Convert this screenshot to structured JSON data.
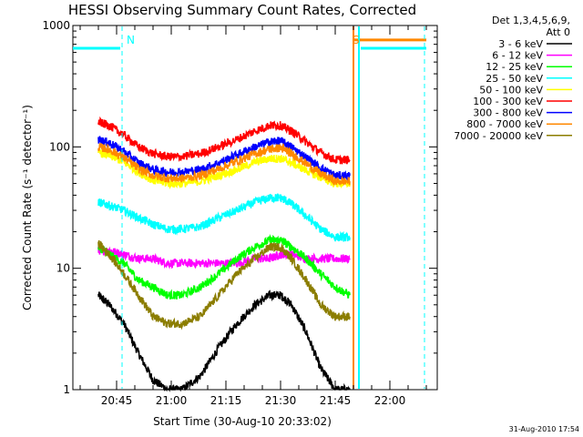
{
  "chart_data": {
    "type": "line",
    "title": "HESSI Observing Summary Count Rates, Corrected",
    "xlabel": "Start Time (30-Aug-10 20:33:02)",
    "ylabel": "Corrected Count Rate (s⁻¹ detector⁻¹)",
    "y_scale": "log",
    "ylim": [
      1,
      1000
    ],
    "x_units": "minutes after 20:33:02",
    "xlim": [
      0,
      100
    ],
    "x_ticks": [
      {
        "label": "20:45",
        "value": 12
      },
      {
        "label": "21:00",
        "value": 27
      },
      {
        "label": "21:15",
        "value": 42
      },
      {
        "label": "21:30",
        "value": 57
      },
      {
        "label": "21:45",
        "value": 72
      },
      {
        "label": "22:00",
        "value": 87
      }
    ],
    "y_ticks": [
      {
        "label": "1",
        "value": 1
      },
      {
        "label": "10",
        "value": 10
      },
      {
        "label": "100",
        "value": 100
      },
      {
        "label": "1000",
        "value": 1000
      }
    ],
    "legend_header": [
      "Det 1,3,4,5,6,9,",
      "Att 0"
    ],
    "legend_placement": "right",
    "series": [
      {
        "name": "3 - 6 keV",
        "color": "#000000",
        "x": [
          7,
          10,
          14,
          18,
          22,
          26,
          30,
          35,
          40,
          45,
          50,
          54,
          57,
          60,
          64,
          68,
          72,
          76
        ],
        "values": [
          6,
          5,
          3.5,
          2.0,
          1.2,
          1.0,
          1.0,
          1.3,
          2.2,
          3.5,
          5,
          6,
          6,
          5,
          3,
          1.5,
          1.0,
          1.0
        ]
      },
      {
        "name": "6 - 12 keV",
        "color": "#ff00ff",
        "x": [
          7,
          10,
          14,
          18,
          22,
          26,
          30,
          35,
          40,
          45,
          50,
          54,
          57,
          60,
          64,
          68,
          72,
          76
        ],
        "values": [
          14,
          14,
          13,
          12,
          12,
          11,
          11,
          11,
          11,
          11,
          12,
          12,
          13,
          13,
          12,
          12,
          12,
          12
        ]
      },
      {
        "name": "12 - 25 keV",
        "color": "#00ff00",
        "x": [
          7,
          10,
          14,
          18,
          22,
          26,
          30,
          35,
          40,
          45,
          50,
          54,
          57,
          60,
          64,
          68,
          72,
          76
        ],
        "values": [
          15,
          13,
          11,
          8,
          7,
          6,
          6,
          7,
          9,
          12,
          15,
          17,
          17,
          15,
          12,
          9,
          7,
          6
        ]
      },
      {
        "name": "25 - 50 keV",
        "color": "#00ffff",
        "x": [
          7,
          10,
          14,
          18,
          22,
          26,
          30,
          35,
          40,
          45,
          50,
          54,
          57,
          60,
          64,
          68,
          72,
          76
        ],
        "values": [
          35,
          33,
          30,
          26,
          23,
          21,
          21,
          22,
          26,
          30,
          35,
          38,
          38,
          34,
          27,
          21,
          18,
          18
        ]
      },
      {
        "name": "50 - 100 keV",
        "color": "#ffff00",
        "x": [
          7,
          10,
          14,
          18,
          22,
          26,
          30,
          35,
          40,
          45,
          50,
          54,
          57,
          60,
          64,
          68,
          72,
          76
        ],
        "values": [
          90,
          85,
          75,
          62,
          53,
          50,
          50,
          52,
          58,
          65,
          75,
          80,
          80,
          74,
          64,
          56,
          50,
          50
        ]
      },
      {
        "name": "100 - 300 keV",
        "color": "#ff0000",
        "x": [
          7,
          10,
          14,
          18,
          22,
          26,
          30,
          35,
          40,
          45,
          50,
          54,
          57,
          60,
          64,
          68,
          72,
          76
        ],
        "values": [
          160,
          150,
          125,
          100,
          88,
          83,
          83,
          88,
          100,
          115,
          135,
          150,
          150,
          135,
          110,
          90,
          78,
          78
        ]
      },
      {
        "name": "300 - 800 keV",
        "color": "#0000ff",
        "x": [
          7,
          10,
          14,
          18,
          22,
          26,
          30,
          35,
          40,
          45,
          50,
          54,
          57,
          60,
          64,
          68,
          72,
          76
        ],
        "values": [
          115,
          108,
          92,
          74,
          65,
          62,
          62,
          65,
          74,
          86,
          100,
          110,
          112,
          100,
          82,
          67,
          58,
          58
        ]
      },
      {
        "name": "800 - 7000 keV",
        "color": "#ff8800",
        "x": [
          7,
          10,
          14,
          18,
          22,
          26,
          30,
          35,
          40,
          45,
          50,
          54,
          57,
          60,
          64,
          68,
          72,
          76
        ],
        "values": [
          100,
          95,
          82,
          66,
          58,
          55,
          55,
          58,
          66,
          76,
          88,
          96,
          98,
          88,
          73,
          60,
          52,
          52
        ]
      },
      {
        "name": "7000 - 20000 keV",
        "color": "#8b7d00",
        "x": [
          7,
          10,
          14,
          18,
          22,
          26,
          30,
          35,
          40,
          45,
          50,
          54,
          57,
          60,
          64,
          68,
          72,
          76
        ],
        "values": [
          16,
          13,
          9,
          6,
          4,
          3.5,
          3.5,
          4,
          6,
          9,
          12,
          15,
          15,
          12,
          8,
          5,
          4,
          4
        ]
      }
    ],
    "annotations": [
      {
        "text": "N",
        "color": "#00ffff",
        "x": 14
      },
      {
        "text": "S",
        "color": "#ff8800",
        "x": 76
      }
    ],
    "status_bars": [
      {
        "name": "night-bar",
        "color": "#00ffff",
        "x_ranges": [
          [
            0,
            13
          ],
          [
            79,
            97
          ]
        ],
        "value": 650
      },
      {
        "name": "saa-bar",
        "color": "#ff8800",
        "x_ranges": [
          [
            77,
            97
          ]
        ],
        "value": 760
      }
    ],
    "vertical_markers": [
      {
        "color": "#00ffff",
        "style": "dashed",
        "x": 13.5
      },
      {
        "color": "#00ffff",
        "style": "dashed",
        "x": 96.5
      },
      {
        "color": "#00ffff",
        "style": "solid",
        "x": 78.5
      },
      {
        "color": "#ff8800",
        "style": "solid",
        "x": 77.0
      }
    ],
    "data_gaps": [
      [
        0,
        7
      ],
      [
        78,
        100
      ]
    ]
  },
  "footer_timestamp": "31-Aug-2010 17:54"
}
